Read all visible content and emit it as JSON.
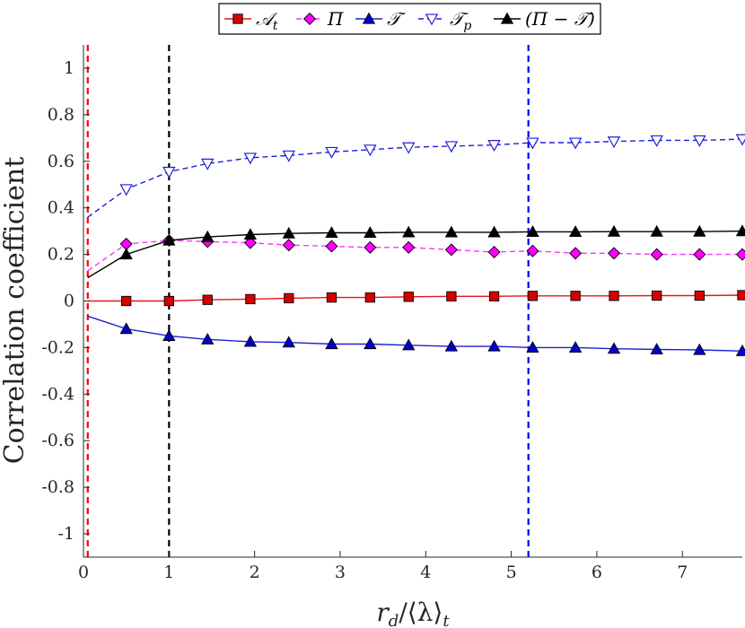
{
  "chart_data": {
    "type": "line",
    "xlabel_main": "r",
    "xlabel_sub": "d",
    "xlabel_rest": "/⟨λ⟩",
    "xlabel_rest_sub": "t",
    "ylabel": "Correlation coefficient",
    "xlim": [
      0,
      7.7
    ],
    "ylim": [
      -1.1,
      1.1
    ],
    "xticks": [
      0,
      1,
      2,
      3,
      4,
      5,
      6,
      7
    ],
    "yticks": [
      -1,
      -0.8,
      -0.6,
      -0.4,
      -0.2,
      0,
      0.2,
      0.4,
      0.6,
      0.8,
      1
    ],
    "ytick_labels": [
      "-1",
      "-0.8",
      "-0.6",
      "-0.4",
      "-0.2",
      "0",
      "0.2",
      "0.4",
      "0.6",
      "0.8",
      "1"
    ],
    "grid": false,
    "legend_position": "top",
    "vertical_lines": [
      {
        "x": 0.05,
        "color": "#ff0000"
      },
      {
        "x": 1.0,
        "color": "#000000"
      },
      {
        "x": 5.2,
        "color": "#0000ff"
      }
    ],
    "series": [
      {
        "name": "𝒜",
        "name_sub": "t",
        "color": "#e8141c",
        "dash": "solid",
        "marker": "square",
        "marker_fill": "#d40000",
        "x": [
          0.05,
          0.5,
          1.0,
          1.45,
          1.95,
          2.4,
          2.9,
          3.35,
          3.8,
          4.3,
          4.8,
          5.25,
          5.75,
          6.2,
          6.7,
          7.2,
          7.7
        ],
        "y": [
          0.0,
          0.0,
          0.0,
          0.005,
          0.008,
          0.012,
          0.015,
          0.015,
          0.018,
          0.02,
          0.02,
          0.022,
          0.022,
          0.022,
          0.023,
          0.023,
          0.025
        ]
      },
      {
        "name": "Π",
        "color": "#ff33ff",
        "dash": "dashed",
        "marker": "diamond",
        "marker_fill": "#ff00ff",
        "x": [
          0.05,
          0.5,
          1.0,
          1.45,
          1.95,
          2.4,
          2.9,
          3.35,
          3.8,
          4.3,
          4.8,
          5.25,
          5.75,
          6.2,
          6.7,
          7.2,
          7.7
        ],
        "y": [
          0.13,
          0.245,
          0.26,
          0.255,
          0.25,
          0.24,
          0.235,
          0.23,
          0.23,
          0.22,
          0.21,
          0.215,
          0.205,
          0.205,
          0.2,
          0.2,
          0.2
        ]
      },
      {
        "name": "𝒯",
        "color": "#1f1fd6",
        "dash": "solid",
        "marker": "triangle-up",
        "marker_fill": "#0000cc",
        "x": [
          0.05,
          0.5,
          1.0,
          1.45,
          1.95,
          2.4,
          2.9,
          3.35,
          3.8,
          4.3,
          4.8,
          5.25,
          5.75,
          6.2,
          6.7,
          7.2,
          7.7
        ],
        "y": [
          -0.065,
          -0.12,
          -0.15,
          -0.165,
          -0.175,
          -0.178,
          -0.185,
          -0.185,
          -0.19,
          -0.195,
          -0.195,
          -0.2,
          -0.2,
          -0.205,
          -0.208,
          -0.21,
          -0.215
        ]
      },
      {
        "name": "𝒯",
        "name_sub": "p",
        "color": "#1f1fd6",
        "dash": "dashed",
        "marker": "triangle-down-open",
        "marker_fill": "#ffffff",
        "x": [
          0.05,
          0.5,
          1.0,
          1.45,
          1.95,
          2.4,
          2.9,
          3.35,
          3.8,
          4.3,
          4.8,
          5.25,
          5.75,
          6.2,
          6.7,
          7.2,
          7.7
        ],
        "y": [
          0.36,
          0.48,
          0.555,
          0.59,
          0.615,
          0.625,
          0.64,
          0.65,
          0.66,
          0.665,
          0.67,
          0.68,
          0.68,
          0.685,
          0.69,
          0.69,
          0.695
        ]
      },
      {
        "name": "(Π − 𝒯)",
        "color": "#000000",
        "dash": "solid",
        "marker": "triangle-up",
        "marker_fill": "#000000",
        "x": [
          0.05,
          0.5,
          1.0,
          1.45,
          1.95,
          2.4,
          2.9,
          3.35,
          3.8,
          4.3,
          4.8,
          5.25,
          5.75,
          6.2,
          6.7,
          7.2,
          7.7
        ],
        "y": [
          0.1,
          0.2,
          0.26,
          0.275,
          0.285,
          0.29,
          0.293,
          0.293,
          0.295,
          0.295,
          0.295,
          0.297,
          0.297,
          0.298,
          0.298,
          0.298,
          0.3
        ]
      }
    ]
  }
}
